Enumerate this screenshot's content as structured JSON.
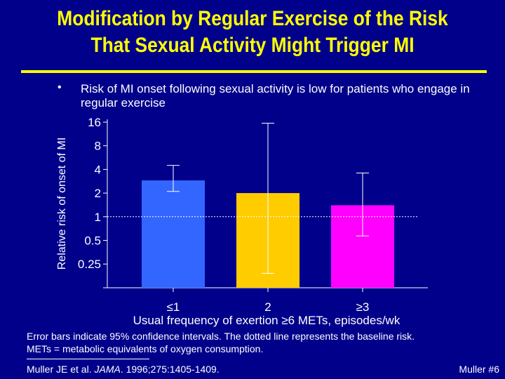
{
  "slide": {
    "title_line1": "Modification by Regular Exercise of the Risk",
    "title_line2": "That Sexual Activity Might Trigger MI",
    "bullet_marker": "•",
    "bullet_text": "Risk of MI onset following sexual activity is low for patients who engage in regular exercise",
    "footnote_line1": "Error bars indicate 95% confidence intervals. The dotted line represents the baseline risk.",
    "footnote_line2": "METs = metabolic equivalents of oxygen consumption.",
    "citation_authors": "Muller JE et al. ",
    "citation_journal": "JAMA",
    "citation_rest": ". 1996;275:1405-1409.",
    "slide_number": "Muller #6",
    "colors": {
      "background": "#00008b",
      "title": "#ffff00",
      "text": "#ffffff"
    }
  },
  "chart_data": {
    "type": "bar",
    "scale": "log2",
    "title": "",
    "ylabel": "Relative risk of onset of MI",
    "xlabel": "Usual frequency of exertion ≥6 METs, episodes/wk",
    "categories": [
      "≤1",
      "2",
      "≥3"
    ],
    "values": [
      2.9,
      2.0,
      1.4
    ],
    "ci_low": [
      2.1,
      0.19,
      0.57
    ],
    "ci_high": [
      4.5,
      15.5,
      3.6
    ],
    "bar_colors": [
      "#3366ff",
      "#ffcc00",
      "#ff00ff"
    ],
    "y_ticks": [
      0.25,
      0.5,
      1,
      2,
      4,
      8,
      16
    ],
    "y_tick_labels": [
      "0.25",
      "0.5",
      "1",
      "2",
      "4",
      "8",
      "16"
    ],
    "ylim": [
      0.125,
      16
    ],
    "baseline": 1,
    "grid": false
  }
}
